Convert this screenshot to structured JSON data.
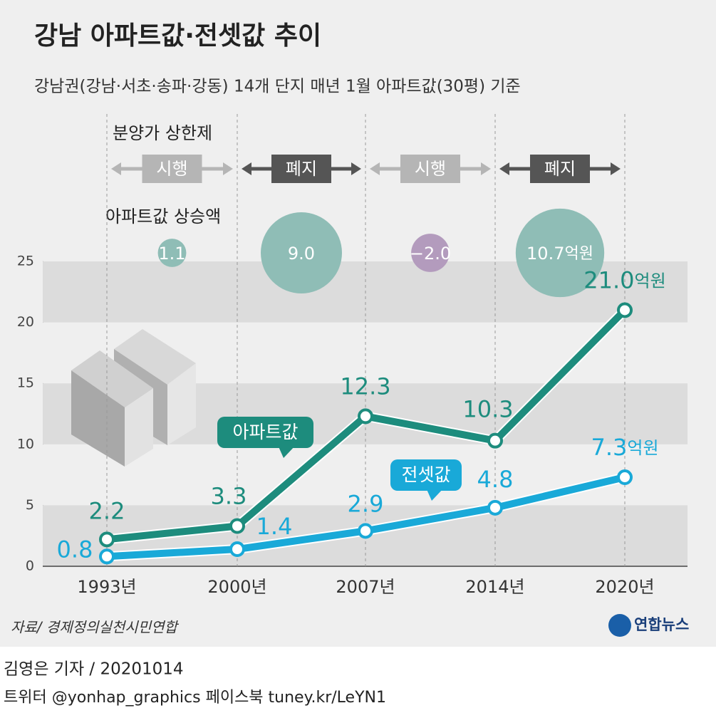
{
  "chart_data": {
    "type": "line",
    "title": "강남 아파트값·전셋값 추이",
    "subtitle": "강남권(강남·서초·송파·강동) 14개 단지 매년 1월 아파트값(30평) 기준",
    "categories": [
      "1993년",
      "2000년",
      "2007년",
      "2014년",
      "2020년"
    ],
    "ylim": [
      0,
      25
    ],
    "yticks": [
      0,
      5,
      10,
      15,
      20,
      25
    ],
    "unit": "억원",
    "series": [
      {
        "name": "아파트값",
        "color": "#1d8c7d",
        "values": [
          2.2,
          3.3,
          12.3,
          10.3,
          21.0
        ],
        "value_labels": [
          "2.2",
          "3.3",
          "12.3",
          "10.3",
          "21.0"
        ]
      },
      {
        "name": "전셋값",
        "color": "#19a9d8",
        "values": [
          0.8,
          1.4,
          2.9,
          4.8,
          7.3
        ],
        "value_labels": [
          "0.8",
          "1.4",
          "2.9",
          "4.8",
          "7.3"
        ]
      }
    ],
    "policy": {
      "title": "분양가 상한제",
      "periods": [
        {
          "label": "시행",
          "color": "#b5b5b5"
        },
        {
          "label": "폐지",
          "color": "#555555"
        },
        {
          "label": "시행",
          "color": "#b5b5b5"
        },
        {
          "label": "폐지",
          "color": "#555555"
        }
      ]
    },
    "increase": {
      "title": "아파트값 상승액",
      "values": [
        1.1,
        9.0,
        -2.0,
        10.7
      ],
      "value_labels": [
        "1.1",
        "9.0",
        "−2.0",
        "10.7"
      ],
      "color": "#8fbdb6",
      "negative_color": "#b39bbd"
    }
  },
  "source": "자료/ 경제정의실천시민연합",
  "logo": "연합뉴스",
  "byline": "김영은 기자 / 20201014",
  "social": "트위터 @yonhap_graphics  페이스북 tuney.kr/LeYN1"
}
